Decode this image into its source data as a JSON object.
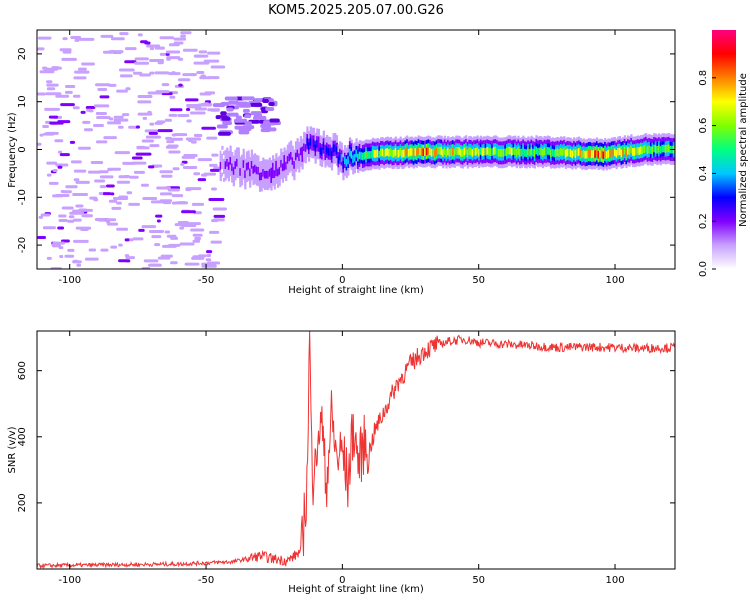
{
  "title": "KOM5.2025.205.07.00.G26",
  "chart_data": [
    {
      "type": "heatmap",
      "xlabel": "Height of straight line (km)",
      "ylabel": "Frequency (Hz)",
      "xlim": [
        -112,
        122
      ],
      "ylim": [
        -25,
        25
      ],
      "xticks": [
        -100,
        -50,
        0,
        50,
        100
      ],
      "yticks": [
        -20,
        -10,
        0,
        10,
        20
      ],
      "colorbar": {
        "label": "Normalized spectral amplitude",
        "range": [
          0,
          1
        ],
        "ticks": [
          0.0,
          0.2,
          0.4,
          0.6,
          0.8
        ],
        "colors": [
          "#ffffff",
          "#c8a0ff",
          "#8000ff",
          "#0000ff",
          "#00c8ff",
          "#00ff80",
          "#80ff00",
          "#ffff00",
          "#ff8000",
          "#ff0000",
          "#ff0080"
        ]
      },
      "ridge": [
        {
          "x": -45,
          "y": -3,
          "amp": 0.15
        },
        {
          "x": -35,
          "y": -4,
          "amp": 0.18
        },
        {
          "x": -25,
          "y": -5,
          "amp": 0.22
        },
        {
          "x": -18,
          "y": -2,
          "amp": 0.2
        },
        {
          "x": -12,
          "y": 1,
          "amp": 0.25
        },
        {
          "x": -5,
          "y": 0,
          "amp": 0.3
        },
        {
          "x": 0,
          "y": -2,
          "amp": 0.35
        },
        {
          "x": 10,
          "y": -1,
          "amp": 0.55
        },
        {
          "x": 25,
          "y": -0.5,
          "amp": 0.8
        },
        {
          "x": 50,
          "y": -0.5,
          "amp": 0.6
        },
        {
          "x": 75,
          "y": -0.5,
          "amp": 0.55
        },
        {
          "x": 95,
          "y": -1,
          "amp": 0.8
        },
        {
          "x": 110,
          "y": 0,
          "amp": 0.6
        },
        {
          "x": 122,
          "y": 0,
          "amp": 0.5
        }
      ]
    },
    {
      "type": "line",
      "xlabel": "Height of straight line (km)",
      "ylabel": "SNR (v/v)",
      "xlim": [
        -112,
        122
      ],
      "ylim": [
        0,
        720
      ],
      "xticks": [
        -100,
        -50,
        0,
        50,
        100
      ],
      "yticks": [
        200,
        400,
        600
      ],
      "color": "#ee3333",
      "series": [
        {
          "x": [
            -112,
            -90,
            -60,
            -40,
            -30,
            -25,
            -20,
            -15,
            -13,
            -12,
            -11,
            -10,
            -9,
            -8,
            -6,
            -4,
            -2,
            0,
            2,
            4,
            6,
            8,
            10,
            12,
            15,
            20,
            25,
            30,
            35,
            40,
            45,
            50,
            60,
            70,
            80,
            90,
            100,
            110,
            122
          ],
          "y": [
            10,
            12,
            15,
            22,
            40,
            30,
            25,
            55,
            250,
            720,
            220,
            420,
            310,
            500,
            250,
            460,
            330,
            360,
            260,
            430,
            320,
            380,
            360,
            420,
            470,
            560,
            620,
            660,
            680,
            690,
            695,
            685,
            680,
            675,
            670,
            672,
            670,
            668,
            670
          ]
        }
      ]
    }
  ]
}
